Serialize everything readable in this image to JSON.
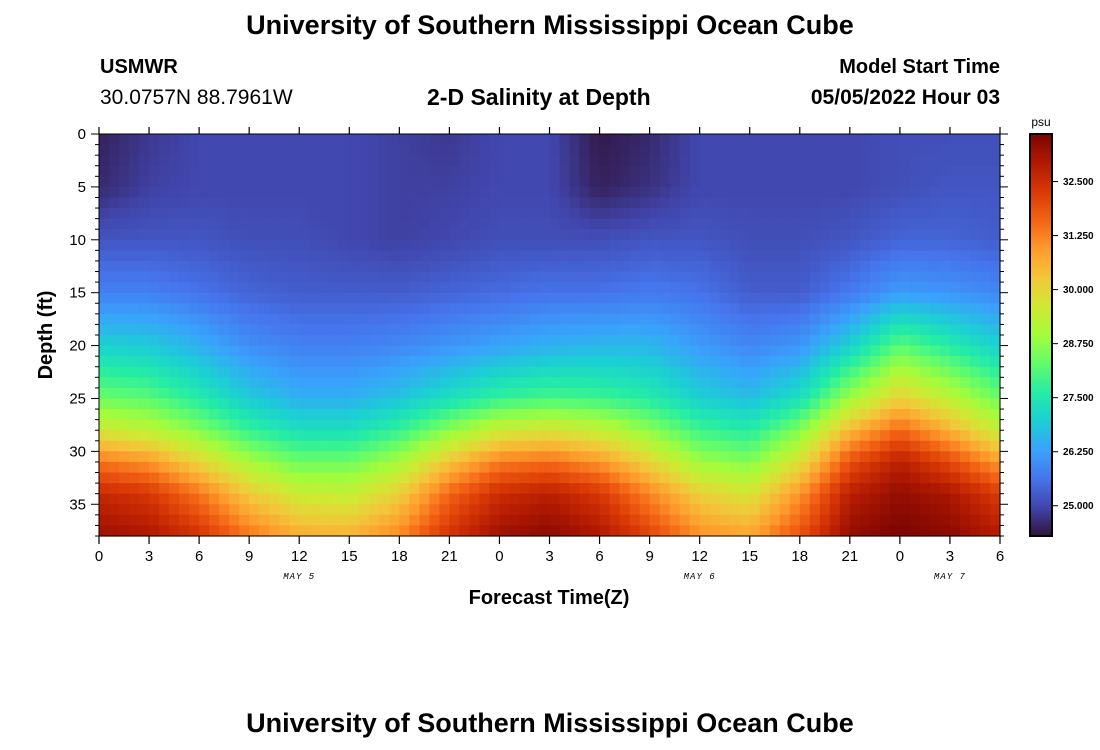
{
  "header": {
    "title": "University of Southern Mississippi Ocean Cube",
    "station_id": "USMWR",
    "coordinates": "30.0757N  88.7961W",
    "model_start_label": "Model Start Time",
    "model_start_value": "05/05/2022 Hour 03"
  },
  "footer": {
    "title": "University of Southern Mississippi Ocean Cube"
  },
  "chart_data": {
    "type": "heatmap",
    "title": "2-D Salinity at Depth",
    "xlabel": "Forecast Time(Z)",
    "ylabel": "Depth (ft)",
    "x_tick_labels": [
      "0",
      "3",
      "6",
      "9",
      "12",
      "15",
      "18",
      "21",
      "0",
      "3",
      "6",
      "9",
      "12",
      "15",
      "18",
      "21",
      "0",
      "3",
      "6"
    ],
    "x_range_hours": [
      0,
      54
    ],
    "date_labels": [
      {
        "label": "MAY 5",
        "hour": 12
      },
      {
        "label": "MAY 6",
        "hour": 36
      },
      {
        "label": "MAY 7",
        "hour": 51
      }
    ],
    "y_ticks": [
      0,
      5,
      10,
      15,
      20,
      25,
      30,
      35
    ],
    "y_range_ft": [
      0,
      38
    ],
    "y_inverted": true,
    "colorbar": {
      "unit": "psu",
      "min": 24.3,
      "max": 33.6,
      "tick_values": [
        25.0,
        26.25,
        27.5,
        28.75,
        30.0,
        31.25,
        32.5
      ],
      "tick_labels": [
        "25.000",
        "26.250",
        "27.500",
        "28.750",
        "30.000",
        "31.250",
        "32.500"
      ],
      "colors": [
        "#30123b",
        "#4145ab",
        "#4675ed",
        "#39a2fc",
        "#1bcfd4",
        "#24eca6",
        "#61fc6c",
        "#a4fc3b",
        "#d1e834",
        "#f3c63a",
        "#fe9b2d",
        "#f36315",
        "#d93806",
        "#b11901",
        "#7a0403"
      ]
    },
    "grid": {
      "times_hours": [
        0,
        3,
        6,
        9,
        12,
        15,
        18,
        21,
        24,
        27,
        30,
        33,
        36,
        39,
        42,
        45,
        48,
        51,
        54
      ],
      "depths_ft": [
        0,
        5,
        10,
        15,
        20,
        25,
        28,
        31,
        34,
        38
      ],
      "salinity_psu": [
        [
          24.5,
          24.8,
          25.0,
          25.0,
          25.0,
          25.0,
          24.9,
          24.8,
          25.0,
          25.0,
          24.4,
          24.6,
          25.0,
          25.0,
          25.0,
          25.0,
          25.1,
          25.1,
          25.1
        ],
        [
          24.6,
          24.9,
          25.0,
          25.0,
          25.0,
          25.0,
          24.9,
          24.9,
          25.0,
          25.0,
          24.5,
          24.7,
          25.0,
          25.0,
          25.0,
          25.0,
          25.1,
          25.2,
          25.2
        ],
        [
          25.2,
          25.2,
          25.2,
          25.1,
          25.1,
          25.0,
          24.9,
          25.0,
          25.1,
          25.1,
          25.1,
          25.2,
          25.2,
          25.1,
          25.1,
          25.2,
          25.4,
          25.4,
          25.3
        ],
        [
          25.8,
          25.8,
          25.6,
          25.4,
          25.3,
          25.3,
          25.3,
          25.4,
          25.5,
          25.6,
          25.6,
          25.7,
          25.6,
          25.3,
          25.3,
          25.7,
          26.2,
          26.1,
          25.9
        ],
        [
          27.0,
          26.9,
          26.5,
          26.0,
          25.8,
          25.8,
          25.9,
          26.1,
          26.3,
          26.5,
          26.6,
          26.6,
          26.2,
          25.9,
          26.1,
          27.0,
          28.2,
          27.6,
          27.0
        ],
        [
          28.4,
          28.2,
          27.6,
          26.9,
          26.5,
          26.5,
          26.8,
          27.3,
          27.8,
          28.0,
          27.9,
          27.6,
          27.0,
          26.7,
          27.3,
          28.9,
          30.1,
          29.3,
          28.4
        ],
        [
          29.6,
          29.3,
          28.6,
          27.8,
          27.3,
          27.3,
          27.8,
          28.7,
          29.5,
          29.7,
          29.4,
          28.7,
          27.9,
          27.6,
          28.6,
          30.5,
          31.6,
          30.6,
          29.4
        ],
        [
          31.4,
          31.0,
          30.0,
          29.0,
          28.4,
          28.4,
          29.0,
          30.3,
          31.3,
          31.5,
          31.0,
          30.0,
          28.9,
          28.6,
          29.8,
          31.9,
          32.8,
          32.0,
          30.9
        ],
        [
          32.6,
          32.3,
          31.4,
          30.2,
          29.5,
          29.4,
          30.1,
          31.6,
          32.5,
          32.8,
          32.3,
          31.2,
          30.1,
          29.7,
          31.0,
          32.8,
          33.3,
          33.0,
          32.2
        ],
        [
          33.2,
          33.0,
          32.4,
          31.4,
          30.7,
          30.6,
          31.2,
          32.4,
          33.2,
          33.4,
          33.0,
          32.1,
          31.1,
          30.8,
          31.9,
          33.3,
          33.6,
          33.4,
          32.9
        ]
      ]
    }
  }
}
